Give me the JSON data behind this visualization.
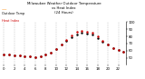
{
  "title": "Milwaukee Weather Outdoor Temperature\nvs Heat Index\n(24 Hours)",
  "legend_temp": "Outdoor Temp",
  "legend_heat": "Heat Index",
  "hours": [
    0,
    1,
    2,
    3,
    4,
    5,
    6,
    7,
    8,
    9,
    10,
    11,
    12,
    13,
    14,
    15,
    16,
    17,
    18,
    19,
    20,
    21,
    22,
    23
  ],
  "temp_values": [
    55,
    54,
    53,
    53,
    52,
    52,
    51,
    52,
    54,
    57,
    62,
    68,
    74,
    79,
    83,
    85,
    84,
    82,
    78,
    73,
    68,
    64,
    61,
    58
  ],
  "heat_values": [
    55,
    54,
    53,
    53,
    52,
    52,
    51,
    52,
    54,
    57,
    62,
    68,
    75,
    81,
    86,
    88,
    87,
    85,
    80,
    74,
    68,
    64,
    61,
    58
  ],
  "temp_color": "#000000",
  "heat_color": "#cc0000",
  "title_color": "#000000",
  "orange_color": "#ff8800",
  "bg_color": "#ffffff",
  "grid_color": "#999999",
  "ylim_min": 40,
  "ylim_max": 100,
  "yticks": [
    50,
    60,
    70,
    80,
    90,
    100
  ],
  "xtick_step": 2,
  "figwidth": 1.6,
  "figheight": 0.87,
  "dpi": 100
}
